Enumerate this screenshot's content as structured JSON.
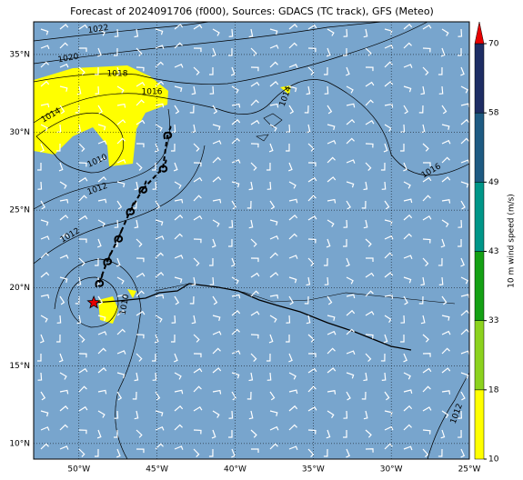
{
  "title": "Forecast of 2024091706 (f000), Sources: GDACS (TC track), GFS (Meteo)",
  "map": {
    "xlim": [
      -52.9,
      -25
    ],
    "ylim": [
      9,
      37.1
    ],
    "xticks": [
      {
        "value": -50,
        "label": "50°W"
      },
      {
        "value": -45,
        "label": "45°W"
      },
      {
        "value": -40,
        "label": "40°W"
      },
      {
        "value": -35,
        "label": "35°W"
      },
      {
        "value": -30,
        "label": "30°W"
      },
      {
        "value": -25,
        "label": "25°W"
      }
    ],
    "yticks": [
      {
        "value": 10,
        "label": "10°N"
      },
      {
        "value": 15,
        "label": "15°N"
      },
      {
        "value": 20,
        "label": "20°N"
      },
      {
        "value": 25,
        "label": "25°N"
      },
      {
        "value": 30,
        "label": "30°N"
      },
      {
        "value": 35,
        "label": "35°N"
      }
    ],
    "ocean_color": "#78a5cd"
  },
  "track": {
    "lon": [
      -48.7,
      -48.18,
      -47.48,
      -46.72,
      -45.91,
      -44.62,
      -44.33
    ],
    "lat": [
      20.34,
      21.74,
      23.2,
      24.95,
      26.35,
      27.7,
      29.86
    ],
    "current_lon": -49.05,
    "current_lat": 19.05
  },
  "contour_labels": [
    "1022",
    "1020",
    "1018",
    "1016",
    "1014",
    "1014",
    "1010",
    "1012",
    "1012",
    "1010",
    "1016",
    "1012"
  ],
  "colorbar": {
    "label": "10 m wind speed (m/s)",
    "ticks": [
      10,
      18,
      33,
      43,
      49,
      58,
      70
    ],
    "colors": [
      "#ffff00",
      "#8cd21e",
      "#14a014",
      "#009688",
      "#1e5a82",
      "#1e2d64"
    ],
    "extend_color": "#e60000"
  }
}
